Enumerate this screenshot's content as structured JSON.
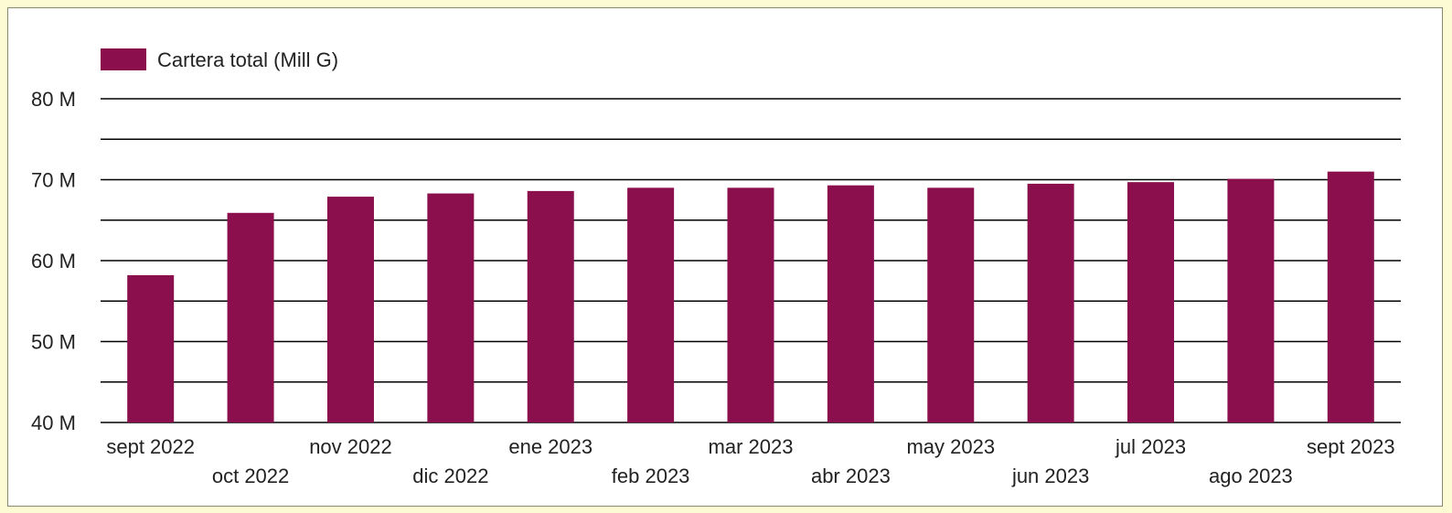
{
  "chart_data": {
    "type": "bar",
    "categories": [
      "sept 2022",
      "oct 2022",
      "nov 2022",
      "dic 2022",
      "ene 2023",
      "feb 2023",
      "mar 2023",
      "abr 2023",
      "may 2023",
      "jun 2023",
      "jul 2023",
      "ago 2023",
      "sept 2023"
    ],
    "series": [
      {
        "name": "Cartera total (Mill G)",
        "values": [
          58.2,
          65.9,
          67.9,
          68.3,
          68.6,
          69.0,
          69.0,
          69.3,
          69.0,
          69.5,
          69.7,
          70.1,
          71.0
        ],
        "color": "#8b0f4d"
      }
    ],
    "ylim": [
      40,
      80
    ],
    "yticks": [
      {
        "value": 40,
        "label": "40 M"
      },
      {
        "value": 50,
        "label": "50 M"
      },
      {
        "value": 60,
        "label": "60 M"
      },
      {
        "value": 70,
        "label": "70 M"
      },
      {
        "value": 80,
        "label": "80 M"
      }
    ],
    "gridlines": [
      40,
      45,
      50,
      55,
      60,
      65,
      70,
      75,
      80
    ],
    "grid": true,
    "legend_position": "top-left",
    "title": "",
    "xlabel": "",
    "ylabel": ""
  },
  "colors": {
    "page_background": "#fdfbd4",
    "bar": "#8b0f4d",
    "grid": "#000000"
  }
}
